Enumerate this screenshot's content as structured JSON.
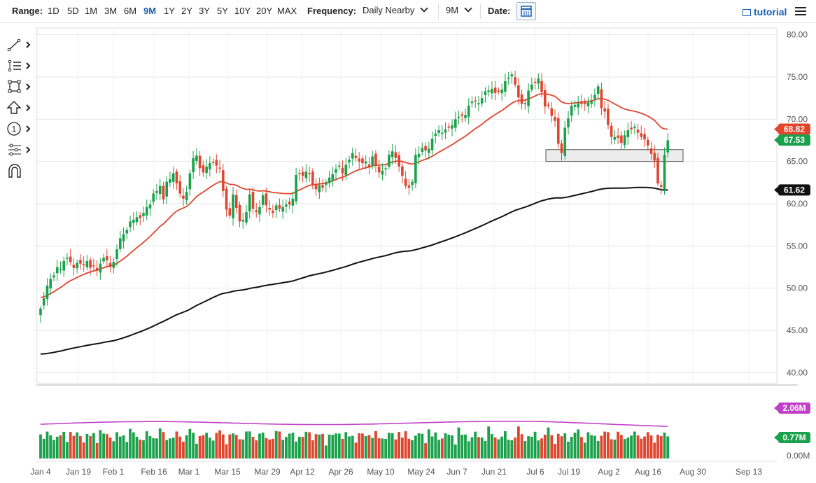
{
  "toolbar": {
    "range_label": "Range:",
    "ranges": [
      "1D",
      "5D",
      "1M",
      "3M",
      "6M",
      "9M",
      "1Y",
      "2Y",
      "3Y",
      "5Y",
      "10Y",
      "20Y",
      "MAX"
    ],
    "active_range": "9M",
    "frequency_label": "Frequency:",
    "frequency_value": "Daily Nearby",
    "period_value": "9M",
    "date_label": "Date:",
    "tutorial_label": "tutorial"
  },
  "tools": [
    "line-tool-icon",
    "fib-tool-icon",
    "rectangle-tool-icon",
    "arrow-tool-icon",
    "number-tool-icon",
    "measure-tool-icon",
    "magnet-icon"
  ],
  "colors": {
    "up": "#1aa14b",
    "down": "#e0452e",
    "ma_short": "#e0452e",
    "ma_long": "#111111",
    "volume_avg": "#c040c8",
    "accent": "#1a5fb4"
  },
  "chart_data": {
    "type": "candlestick",
    "x_ticks": [
      "Jan 4",
      "Jan 19",
      "Feb 1",
      "Feb 16",
      "Mar 1",
      "Mar 15",
      "Mar 29",
      "Apr 12",
      "Apr 26",
      "May 10",
      "May 24",
      "Jun 7",
      "Jun 21",
      "Jul 6",
      "Jul 19",
      "Aug 2",
      "Aug 16",
      "Aug 30",
      "Sep 13"
    ],
    "price_ticks": [
      "80.00",
      "75.00",
      "70.00",
      "65.00",
      "60.00",
      "55.00",
      "50.00",
      "45.00",
      "40.00"
    ],
    "price_ylim": [
      38.7,
      80.8
    ],
    "closes": [
      47.6,
      48.8,
      50.3,
      51.1,
      51.5,
      52.5,
      52.3,
      53.2,
      53.6,
      53.1,
      52.4,
      53.0,
      52.9,
      52.8,
      53.2,
      52.4,
      52.6,
      52.1,
      52.9,
      53.6,
      53.3,
      52.5,
      53.1,
      54.6,
      55.9,
      56.4,
      56.9,
      57.9,
      58.1,
      58.4,
      58.3,
      58.9,
      59.6,
      59.9,
      61.2,
      61.5,
      62.1,
      60.5,
      62.6,
      62.9,
      63.6,
      62.4,
      61.2,
      60.6,
      61.4,
      63.6,
      65.4,
      65.7,
      64.2,
      63.7,
      64.4,
      64.8,
      64.9,
      64.5,
      64.2,
      61.5,
      59.3,
      58.6,
      61.1,
      59.5,
      57.9,
      58.1,
      59.0,
      61.1,
      59.4,
      59.0,
      59.6,
      61.0,
      59.8,
      59.3,
      58.9,
      59.8,
      59.4,
      59.6,
      59.9,
      59.9,
      60.6,
      63.4,
      63.5,
      63.3,
      63.8,
      63.5,
      62.2,
      61.7,
      62.2,
      61.9,
      62.5,
      63.1,
      63.5,
      64.1,
      64.5,
      63.6,
      64.6,
      65.2,
      66.0,
      65.4,
      65.0,
      64.8,
      65.0,
      64.3,
      65.6,
      64.6,
      63.7,
      63.9,
      64.2,
      65.8,
      66.2,
      65.4,
      64.4,
      63.3,
      62.1,
      61.9,
      62.6,
      65.8,
      65.9,
      66.6,
      66.3,
      66.5,
      67.7,
      68.3,
      68.7,
      68.4,
      68.8,
      69.0,
      69.3,
      70.0,
      70.3,
      70.4,
      70.5,
      71.6,
      72.1,
      72.1,
      71.9,
      72.5,
      73.3,
      73.4,
      73.6,
      73.1,
      73.3,
      73.5,
      74.5,
      74.9,
      75.3,
      74.1,
      72.6,
      71.8,
      71.9,
      73.4,
      74.1,
      74.4,
      74.8,
      73.2,
      71.5,
      71.6,
      70.4,
      69.8,
      67.1,
      66.0,
      69.0,
      70.1,
      71.6,
      71.7,
      71.9,
      71.8,
      71.8,
      72.0,
      72.1,
      72.9,
      73.9,
      71.3,
      70.9,
      69.3,
      67.9,
      67.9,
      67.8,
      67.2,
      68.1,
      68.7,
      68.8,
      69.1,
      68.4,
      67.9,
      67.6,
      66.9,
      65.9,
      65.1,
      62.4,
      62.0,
      65.8,
      67.5
    ],
    "price_pattern": "ohlc",
    "ma_short_last": "68.82",
    "last_price": "67.53",
    "ma_long_last": "61.62",
    "ma_short_start": 48.9,
    "ma_short_end": 68.82,
    "ma_long_start": 42.2,
    "ma_long_end": 61.62,
    "support_zone": [
      65.0,
      66.4
    ],
    "volume_ticks": [
      "0.00M"
    ],
    "volume_avg_tag": "2.06M",
    "volume_last_tag": "0.77M",
    "volume_ylim": [
      0,
      4.0
    ]
  }
}
